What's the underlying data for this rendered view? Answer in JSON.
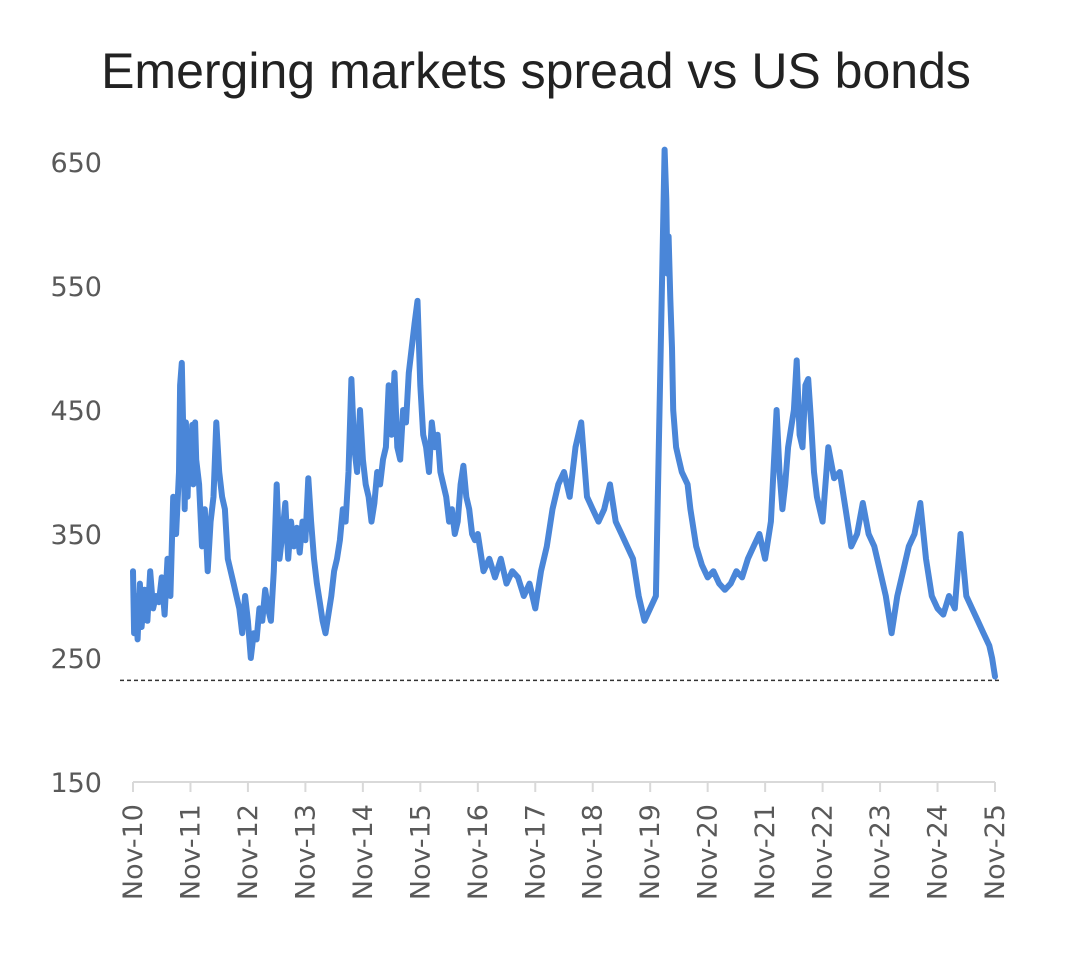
{
  "colors": {
    "series": "#4a86d8",
    "axis": "#d9d9d9",
    "text": "#595959",
    "title": "#222222",
    "reference": "#333333"
  },
  "chart_data": {
    "type": "line",
    "title": "Emerging markets spread vs US bonds",
    "xlabel": "",
    "ylabel": "",
    "ylim": [
      150,
      650
    ],
    "yticks": [
      650,
      550,
      450,
      350,
      250,
      150
    ],
    "xlim": [
      0,
      15
    ],
    "x_tick_labels": [
      "Nov-10",
      "Nov-11",
      "Nov-12",
      "Nov-13",
      "Nov-14",
      "Nov-15",
      "Nov-16",
      "Nov-17",
      "Nov-18",
      "Nov-19",
      "Nov-20",
      "Nov-21",
      "Nov-22",
      "Nov-23",
      "Nov-24",
      "Nov-25"
    ],
    "reference_line": {
      "y": 232,
      "style": "dotted"
    },
    "legend": "none",
    "grid": false,
    "series": [
      {
        "name": "Emerging markets spread",
        "x": [
          0.0,
          0.02,
          0.05,
          0.08,
          0.12,
          0.15,
          0.2,
          0.25,
          0.3,
          0.35,
          0.4,
          0.45,
          0.5,
          0.55,
          0.6,
          0.65,
          0.7,
          0.75,
          0.8,
          0.82,
          0.85,
          0.88,
          0.9,
          0.92,
          0.95,
          0.98,
          1.0,
          1.03,
          1.05,
          1.08,
          1.1,
          1.15,
          1.2,
          1.25,
          1.3,
          1.35,
          1.4,
          1.45,
          1.5,
          1.55,
          1.6,
          1.65,
          1.7,
          1.75,
          1.8,
          1.85,
          1.9,
          1.95,
          2.0,
          2.05,
          2.1,
          2.15,
          2.2,
          2.25,
          2.3,
          2.35,
          2.4,
          2.45,
          2.5,
          2.55,
          2.6,
          2.65,
          2.7,
          2.75,
          2.8,
          2.85,
          2.9,
          2.95,
          3.0,
          3.05,
          3.1,
          3.15,
          3.2,
          3.25,
          3.3,
          3.35,
          3.4,
          3.45,
          3.5,
          3.55,
          3.6,
          3.65,
          3.7,
          3.75,
          3.8,
          3.85,
          3.9,
          3.95,
          4.0,
          4.05,
          4.1,
          4.15,
          4.2,
          4.25,
          4.3,
          4.35,
          4.4,
          4.45,
          4.5,
          4.55,
          4.6,
          4.65,
          4.7,
          4.75,
          4.8,
          4.85,
          4.9,
          4.95,
          5.0,
          5.05,
          5.1,
          5.15,
          5.2,
          5.25,
          5.3,
          5.35,
          5.4,
          5.45,
          5.5,
          5.55,
          5.6,
          5.65,
          5.7,
          5.75,
          5.8,
          5.85,
          5.9,
          5.95,
          6.0,
          6.1,
          6.2,
          6.3,
          6.4,
          6.5,
          6.6,
          6.7,
          6.8,
          6.9,
          7.0,
          7.1,
          7.2,
          7.3,
          7.4,
          7.5,
          7.6,
          7.7,
          7.8,
          7.9,
          8.0,
          8.1,
          8.2,
          8.3,
          8.4,
          8.5,
          8.6,
          8.7,
          8.8,
          8.9,
          9.0,
          9.1,
          9.2,
          9.25,
          9.28,
          9.3,
          9.32,
          9.35,
          9.38,
          9.4,
          9.45,
          9.5,
          9.55,
          9.6,
          9.65,
          9.7,
          9.8,
          9.9,
          10.0,
          10.1,
          10.2,
          10.3,
          10.4,
          10.5,
          10.6,
          10.7,
          10.8,
          10.9,
          11.0,
          11.1,
          11.2,
          11.25,
          11.3,
          11.35,
          11.4,
          11.5,
          11.55,
          11.6,
          11.65,
          11.7,
          11.75,
          11.8,
          11.85,
          11.9,
          11.95,
          12.0,
          12.1,
          12.2,
          12.3,
          12.4,
          12.5,
          12.6,
          12.7,
          12.8,
          12.9,
          13.0,
          13.1,
          13.2,
          13.3,
          13.4,
          13.5,
          13.6,
          13.7,
          13.8,
          13.9,
          14.0,
          14.1,
          14.2,
          14.3,
          14.4,
          14.5,
          14.6,
          14.7,
          14.8,
          14.9,
          14.95,
          15.0
        ],
        "values": [
          320,
          270,
          300,
          265,
          310,
          275,
          305,
          280,
          320,
          290,
          300,
          295,
          315,
          285,
          330,
          300,
          380,
          350,
          400,
          470,
          488,
          420,
          370,
          440,
          380,
          430,
          400,
          438,
          390,
          440,
          410,
          390,
          340,
          370,
          320,
          360,
          380,
          440,
          400,
          380,
          370,
          330,
          320,
          310,
          300,
          290,
          270,
          300,
          280,
          250,
          270,
          265,
          290,
          280,
          305,
          290,
          280,
          320,
          390,
          330,
          350,
          375,
          330,
          360,
          340,
          355,
          335,
          360,
          345,
          395,
          360,
          330,
          310,
          295,
          280,
          270,
          285,
          300,
          320,
          330,
          345,
          370,
          360,
          400,
          475,
          420,
          400,
          450,
          410,
          390,
          380,
          360,
          375,
          400,
          390,
          410,
          420,
          470,
          430,
          480,
          420,
          410,
          450,
          440,
          480,
          500,
          520,
          538,
          470,
          430,
          420,
          400,
          440,
          420,
          430,
          400,
          390,
          380,
          360,
          370,
          350,
          360,
          390,
          405,
          380,
          370,
          350,
          345,
          350,
          320,
          330,
          315,
          330,
          310,
          320,
          315,
          300,
          310,
          290,
          320,
          340,
          370,
          390,
          400,
          380,
          420,
          440,
          380,
          370,
          360,
          370,
          390,
          360,
          350,
          340,
          330,
          300,
          280,
          290,
          300,
          540,
          660,
          620,
          560,
          590,
          540,
          500,
          450,
          420,
          410,
          400,
          395,
          390,
          370,
          340,
          325,
          315,
          320,
          310,
          305,
          310,
          320,
          315,
          330,
          340,
          350,
          330,
          360,
          450,
          400,
          370,
          390,
          420,
          450,
          490,
          430,
          420,
          470,
          475,
          440,
          400,
          380,
          370,
          360,
          420,
          395,
          400,
          370,
          340,
          350,
          375,
          350,
          340,
          320,
          300,
          270,
          300,
          320,
          340,
          350,
          375,
          330,
          300,
          290,
          285,
          300,
          290,
          350,
          300,
          290,
          280,
          270,
          260,
          250,
          235
        ]
      }
    ]
  }
}
